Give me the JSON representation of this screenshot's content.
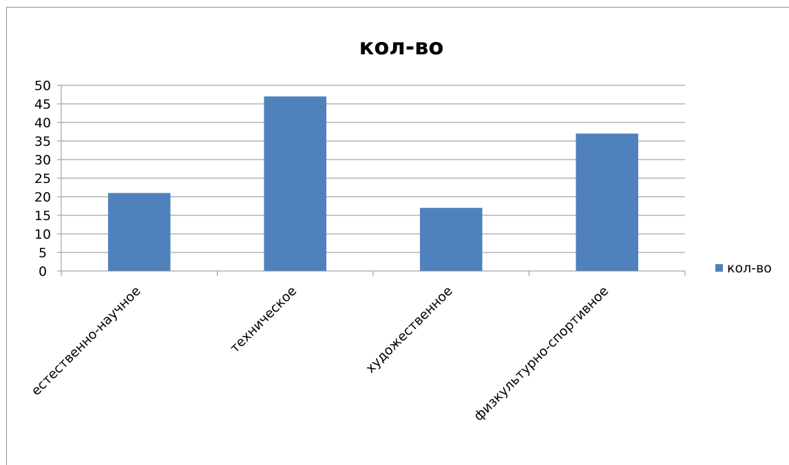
{
  "chart_data": {
    "type": "bar",
    "title": "кол-во",
    "categories": [
      "естественно-научное",
      "техническое",
      "художественное",
      "физкультурно-спортивное"
    ],
    "series": [
      {
        "name": "кол-во",
        "values": [
          21,
          47,
          17,
          37
        ],
        "color": "#4F81BD"
      }
    ],
    "ylim": [
      0,
      50
    ],
    "yticks": [
      0,
      5,
      10,
      15,
      20,
      25,
      30,
      35,
      40,
      45,
      50
    ],
    "grid": true,
    "legend_position": "right"
  }
}
